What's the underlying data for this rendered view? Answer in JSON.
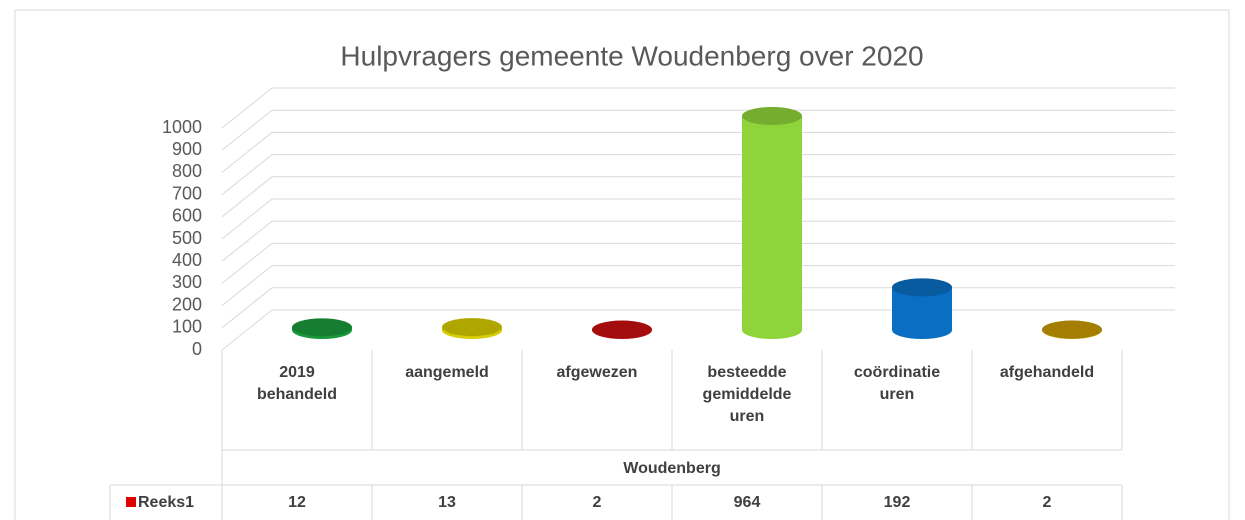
{
  "chart_data": {
    "type": "cylinder3d",
    "title": "Hulpvragers gemeente Woudenberg over 2020",
    "categories": [
      "2019 behandeld",
      "aangemeld",
      "afgewezen",
      "besteedde gemiddelde uren",
      "coördinatie uren",
      "afgehandeld"
    ],
    "group_label": "Woudenberg",
    "series": [
      {
        "name": "Reeks1",
        "color": "#e00000",
        "values": [
          12,
          13,
          2,
          964,
          192,
          2
        ],
        "colors": [
          "#1a9a3c",
          "#d6cc00",
          "#c81010",
          "#8ed43a",
          "#0a6fc2",
          "#c89a00"
        ]
      }
    ],
    "ylim": [
      0,
      1000
    ],
    "yticks": [
      0,
      100,
      200,
      300,
      400,
      500,
      600,
      700,
      800,
      900,
      1000
    ],
    "grid": true,
    "data_table": true
  }
}
